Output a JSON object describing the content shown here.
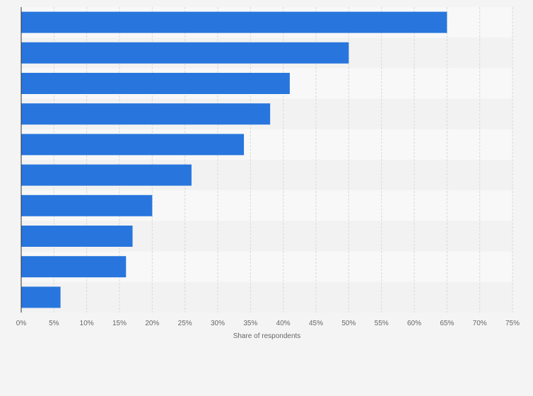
{
  "chart_data": {
    "type": "bar",
    "orientation": "horizontal",
    "categories": [
      "",
      "",
      "",
      "",
      "",
      "",
      "",
      "",
      "",
      ""
    ],
    "values": [
      65,
      50,
      41,
      38,
      34,
      26,
      20,
      17,
      16,
      6
    ],
    "title": "",
    "xlabel": "Share of respondents",
    "ylabel": "",
    "xlim": [
      0,
      75
    ],
    "xticks": [
      "0%",
      "5%",
      "10%",
      "15%",
      "20%",
      "25%",
      "30%",
      "35%",
      "40%",
      "45%",
      "50%",
      "55%",
      "60%",
      "65%",
      "70%",
      "75%"
    ],
    "grid": true,
    "colors": {
      "bar": "#2876dd",
      "band_light": "#f8f8f8",
      "band_dark": "#f2f2f2",
      "grid": "#d9d9d9"
    }
  }
}
